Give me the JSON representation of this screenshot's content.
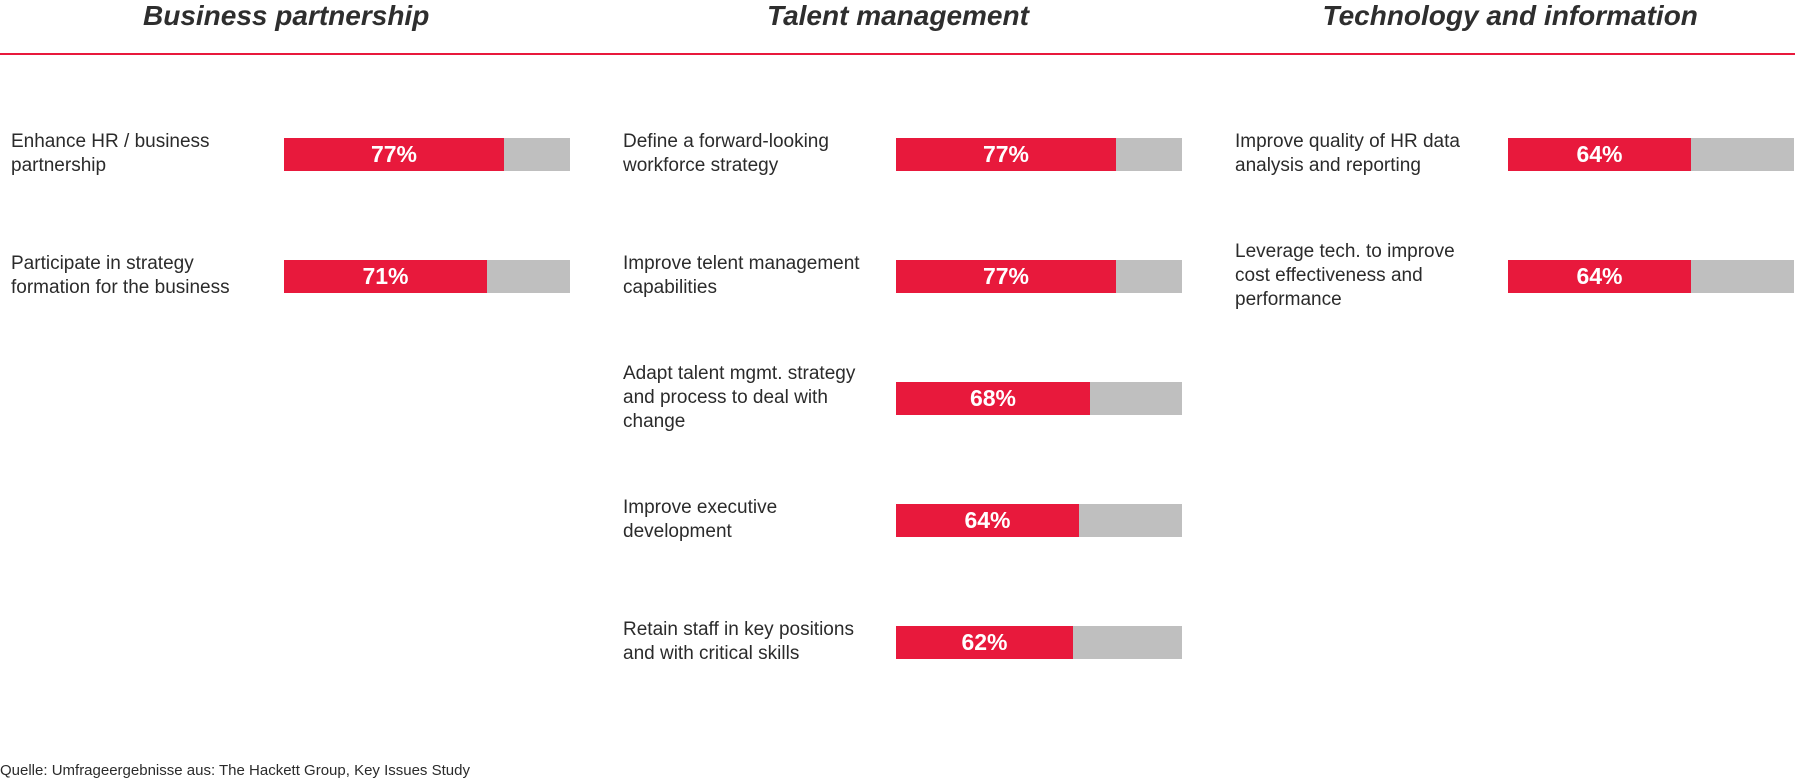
{
  "chart_data": {
    "type": "bar",
    "orientation": "horizontal",
    "value_max": 100,
    "colors": {
      "fill": "#e8193c",
      "track": "#bfbfbf",
      "rule": "#e8193c"
    },
    "groups": [
      {
        "title": "Business partnership",
        "items": [
          {
            "label": [
              "Enhance HR / business",
              "partnership"
            ],
            "value": 77,
            "value_label": "77%"
          },
          {
            "label": [
              "Participate in strategy",
              "formation for the business"
            ],
            "value": 71,
            "value_label": "71%"
          }
        ]
      },
      {
        "title": "Talent management",
        "items": [
          {
            "label": [
              "Define a forward-looking",
              "workforce strategy"
            ],
            "value": 77,
            "value_label": "77%"
          },
          {
            "label": [
              "Improve telent management",
              "capabilities"
            ],
            "value": 77,
            "value_label": "77%"
          },
          {
            "label": [
              "Adapt talent mgmt. strategy",
              "and process to deal with",
              "change"
            ],
            "value": 68,
            "value_label": "68%"
          },
          {
            "label": [
              "Improve executive",
              "development"
            ],
            "value": 64,
            "value_label": "64%"
          },
          {
            "label": [
              "Retain staff in key positions",
              "and with critical skills"
            ],
            "value": 62,
            "value_label": "62%"
          }
        ]
      },
      {
        "title": "Technology and information",
        "items": [
          {
            "label": [
              "Improve quality of HR data",
              "analysis and reporting"
            ],
            "value": 64,
            "value_label": "64%"
          },
          {
            "label": [
              "Leverage tech. to improve",
              "cost effectiveness and",
              "performance"
            ],
            "value": 64,
            "value_label": "64%"
          }
        ]
      }
    ]
  },
  "source": "Quelle: Umfrageergebnisse aus: The Hackett Group, Key Issues Study"
}
